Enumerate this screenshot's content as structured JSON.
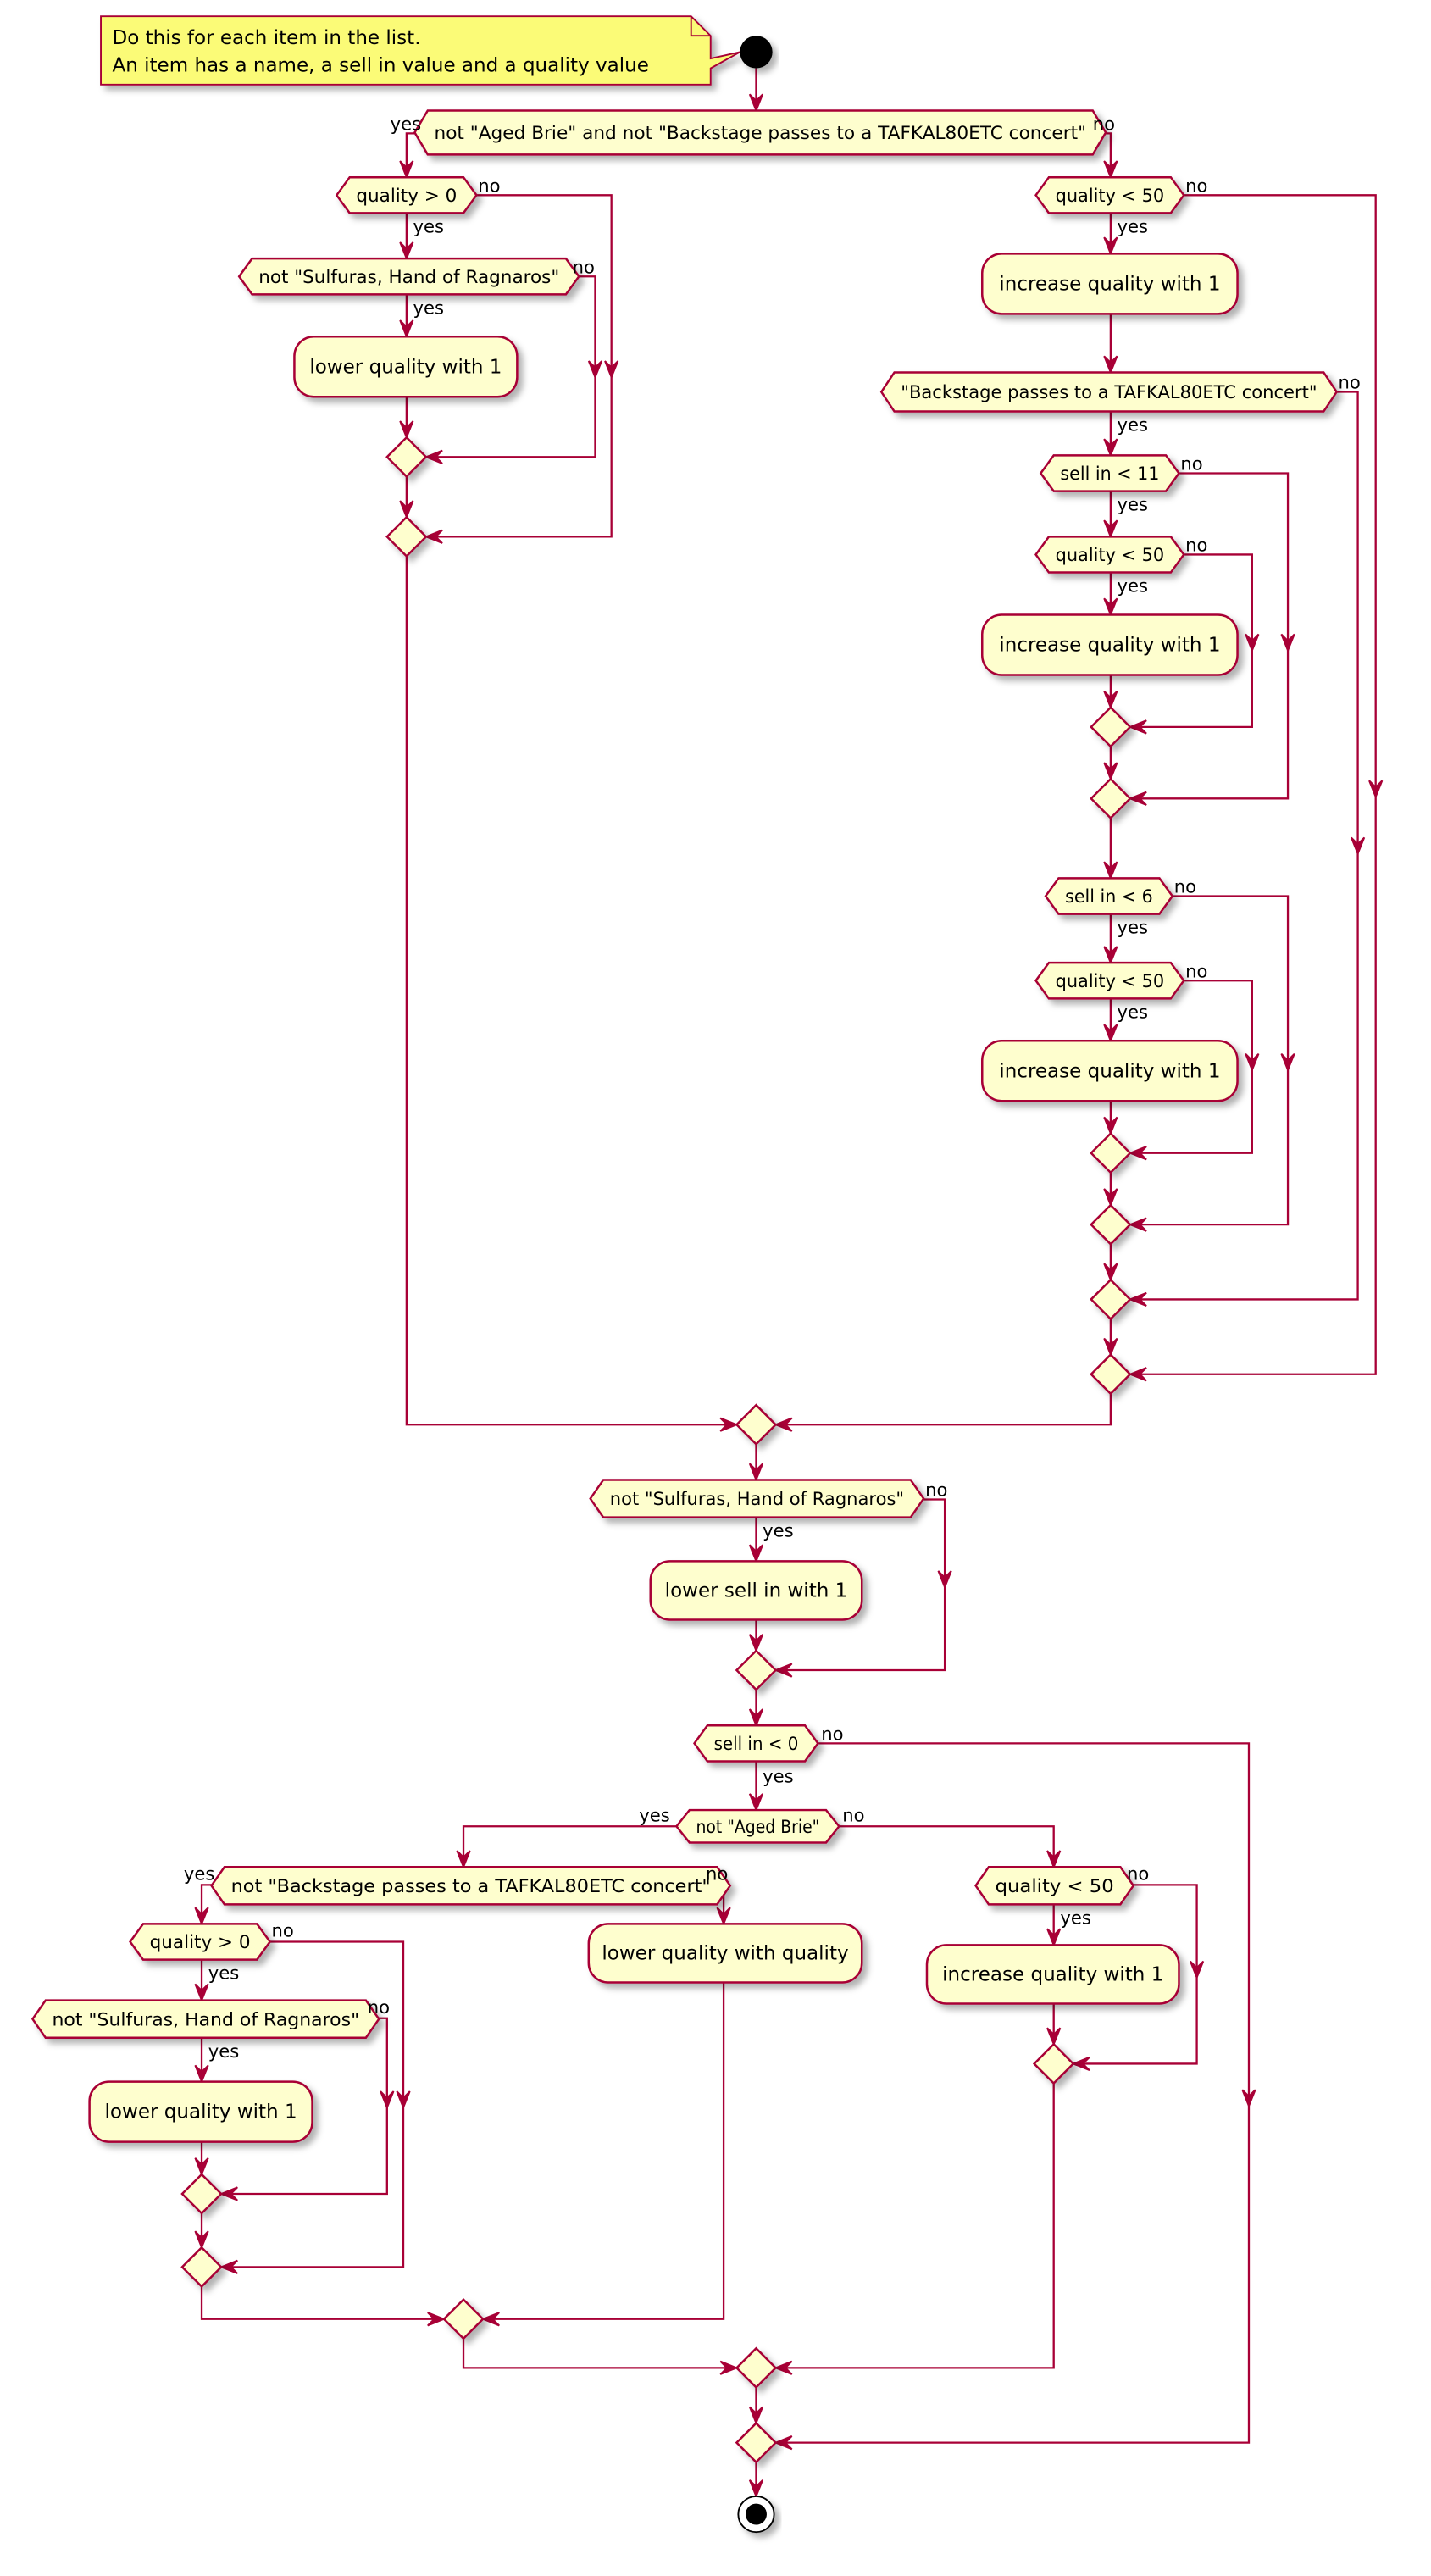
{
  "note": {
    "lines": [
      "Do this for each item in the list.",
      "An item has a name, a sell in value and a quality value"
    ]
  },
  "decisions": [
    "not \"Aged Brie\" and not \"Backstage passes to a TAFKAL80ETC concert\"",
    "quality > 0",
    "not \"Sulfuras, Hand of Ragnaros\"",
    "quality < 50",
    "\"Backstage passes to a TAFKAL80ETC concert\"",
    "sell in < 11",
    "quality < 50",
    "sell in < 6",
    "quality < 50",
    "not \"Sulfuras, Hand of Ragnaros\"",
    "sell in < 0",
    "not \"Aged Brie\"",
    "not \"Backstage passes to a TAFKAL80ETC concert\"",
    "quality > 0",
    "not \"Sulfuras, Hand of Ragnaros\"",
    "quality < 50"
  ],
  "actions": [
    "lower quality with 1",
    "increase quality with 1",
    "increase quality with 1",
    "increase quality with 1",
    "lower sell in with 1",
    "lower quality with quality",
    "increase quality with 1",
    "lower quality with 1"
  ],
  "branch_labels": {
    "yes": "yes",
    "no": "no"
  },
  "colors": {
    "border": "#A80036",
    "fill": "#FEFECE",
    "note_fill": "#FBFB77",
    "start_end": "#000000"
  }
}
